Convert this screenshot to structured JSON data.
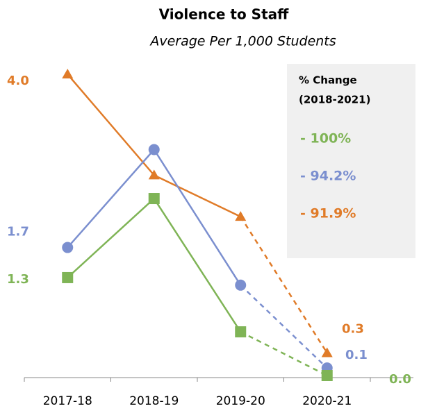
{
  "chart_data": {
    "type": "line",
    "title": "Violence to Staff",
    "subtitle": "Average Per 1,000 Students",
    "categories": [
      "2017-18",
      "2018-19",
      "2019-20",
      "2020-21"
    ],
    "ylim": [
      0,
      4
    ],
    "dashed_after_index": 2,
    "series": [
      {
        "name": "orange",
        "color": "#e07b28",
        "marker": "triangle",
        "values": [
          4.0,
          2.66,
          2.11,
          0.3
        ],
        "value_labels": [
          "4.0",
          null,
          null,
          "0.3"
        ]
      },
      {
        "name": "blue",
        "color": "#7b8fcf",
        "marker": "circle",
        "values": [
          1.7,
          3.0,
          1.2,
          0.1
        ],
        "value_labels": [
          "1.7",
          null,
          null,
          "0.1"
        ]
      },
      {
        "name": "green",
        "color": "#7fb456",
        "marker": "square",
        "values": [
          1.3,
          2.35,
          0.58,
          0.0
        ],
        "value_labels": [
          "1.3",
          null,
          null,
          "0.0"
        ]
      }
    ],
    "change_box": {
      "title": [
        "% Change",
        "(2018-2021)"
      ],
      "entries": [
        {
          "text": "- 100%",
          "color": "#7fb456"
        },
        {
          "text": "- 94.2%",
          "color": "#7b8fcf"
        },
        {
          "text": "- 91.9%",
          "color": "#e07b28"
        }
      ]
    }
  }
}
